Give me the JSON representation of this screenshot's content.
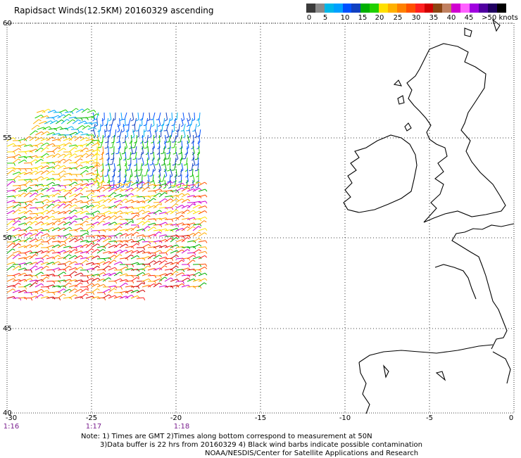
{
  "title": "Rapidsact Winds(12.5KM) 20160329 ascending",
  "scale": {
    "colors": [
      "#3a3a3a",
      "#8a8a8a",
      "#00b7e8",
      "#00a0ff",
      "#0050ff",
      "#1040c0",
      "#00b000",
      "#20d000",
      "#ffe000",
      "#ffb000",
      "#ff8000",
      "#ff5000",
      "#ff2020",
      "#d00000",
      "#8b4513",
      "#c08060",
      "#d000d0",
      "#ff60ff",
      "#a000e0",
      "#5000a0",
      "#200060",
      "#000000",
      "#ffffff"
    ],
    "labels": [
      "0",
      "5",
      "10",
      "15",
      "20",
      "25",
      "30",
      "35",
      "40",
      "45",
      ">50 knots"
    ]
  },
  "lat_ticks": [
    "60",
    "55",
    "50",
    "45",
    "40"
  ],
  "lon_ticks": [
    "-30",
    "-25",
    "-20",
    "-15",
    "-10",
    "-5",
    "0"
  ],
  "time_labels": [
    "1:16",
    "1:17",
    "1:18"
  ],
  "notes": {
    "line1": "Note: 1) Times are GMT 2)Times along bottom correspond to measurement at 50N",
    "line2": "3)Data buffer is 22 hrs from 20160329 4) Black wind barbs indicate possible contamination",
    "line3": "NOAA/NESDIS/Center for Satellite Applications and Research"
  }
}
